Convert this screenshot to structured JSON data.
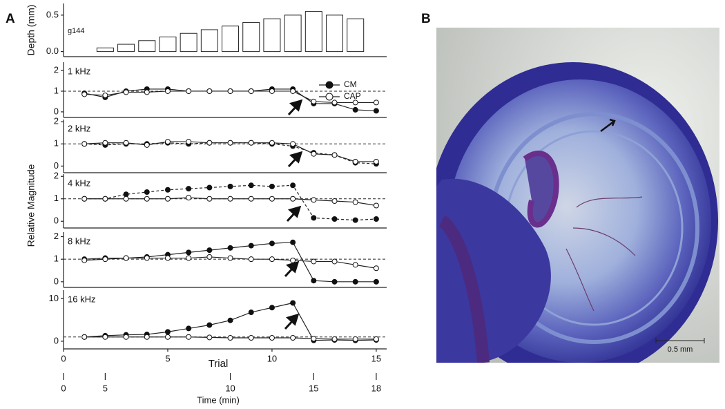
{
  "panel_labels": [
    "A",
    "B"
  ],
  "scale_bar": "0.5 mm",
  "chart_data": [
    {
      "type": "bar",
      "ylabel": "Depth (mm)",
      "annotation": "g144",
      "x": [
        2,
        3,
        4,
        5,
        6,
        7,
        8,
        9,
        10,
        11,
        12,
        13,
        14
      ],
      "values": [
        0.05,
        0.1,
        0.15,
        0.2,
        0.25,
        0.3,
        0.35,
        0.4,
        0.45,
        0.5,
        0.55,
        0.5,
        0.45
      ],
      "color": "#ffffff",
      "ylim": [
        -0.07,
        0.66
      ],
      "yticks": [
        {
          "value": 0,
          "label": "0.0"
        },
        0.5
      ]
    },
    {
      "type": "line",
      "label": "1 kHz",
      "legend": true,
      "reference": 1,
      "x": [
        1,
        2,
        3,
        4,
        5,
        6,
        7,
        8,
        9,
        10,
        11,
        12,
        13,
        14,
        15
      ],
      "series": [
        {
          "name": "CM",
          "filled": true,
          "dashed": false,
          "values": [
            0.9,
            0.7,
            1.0,
            1.1,
            1.1,
            1.0,
            1.0,
            1.0,
            1.0,
            1.1,
            1.1,
            0.4,
            0.4,
            0.1,
            0.05
          ]
        },
        {
          "name": "CAP",
          "filled": false,
          "dashed": false,
          "values": [
            0.85,
            0.8,
            0.95,
            0.95,
            1.0,
            1.0,
            1.0,
            1.0,
            1.0,
            1.0,
            1.0,
            0.5,
            0.45,
            0.45,
            0.45
          ]
        }
      ],
      "ylim": [
        -0.27,
        2.4
      ],
      "yticks": [
        0,
        1,
        2
      ]
    },
    {
      "type": "line",
      "label": "2 kHz",
      "reference": 1,
      "x": [
        1,
        2,
        3,
        4,
        5,
        6,
        7,
        8,
        9,
        10,
        11,
        12,
        13,
        14,
        15
      ],
      "series": [
        {
          "filled": true,
          "dashed": true,
          "values": [
            1.0,
            0.95,
            1.0,
            1.0,
            1.05,
            1.0,
            1.05,
            1.05,
            1.05,
            1.0,
            0.9,
            0.6,
            0.5,
            0.15,
            0.1
          ]
        },
        {
          "filled": false,
          "dashed": false,
          "values": [
            1.0,
            1.05,
            1.05,
            0.95,
            1.1,
            1.1,
            1.05,
            1.05,
            1.05,
            1.05,
            1.0,
            0.55,
            0.5,
            0.2,
            0.2
          ]
        }
      ],
      "ylim": [
        -0.3,
        2.1
      ],
      "yticks": [
        0,
        1,
        2
      ]
    },
    {
      "type": "line",
      "label": "4 kHz",
      "reference": 1,
      "ylabel": "Relative Magnitude",
      "x": [
        1,
        2,
        3,
        4,
        5,
        6,
        7,
        8,
        9,
        10,
        11,
        12,
        13,
        14,
        15
      ],
      "series": [
        {
          "filled": true,
          "dashed": true,
          "values": [
            1.0,
            1.0,
            1.2,
            1.3,
            1.4,
            1.45,
            1.5,
            1.55,
            1.6,
            1.55,
            1.6,
            0.15,
            0.1,
            0.05,
            0.1
          ]
        },
        {
          "filled": false,
          "dashed": false,
          "values": [
            1.0,
            1.0,
            1.0,
            1.0,
            1.0,
            1.05,
            1.0,
            1.0,
            1.0,
            1.0,
            1.0,
            0.95,
            0.9,
            0.85,
            0.7
          ]
        }
      ],
      "ylim": [
        -0.3,
        2.1
      ],
      "yticks": [
        0,
        1,
        2
      ]
    },
    {
      "type": "line",
      "label": "8 kHz",
      "reference": 1,
      "x": [
        1,
        2,
        3,
        4,
        5,
        6,
        7,
        8,
        9,
        10,
        11,
        12,
        13,
        14,
        15
      ],
      "series": [
        {
          "filled": true,
          "dashed": false,
          "values": [
            1.0,
            1.05,
            1.05,
            1.1,
            1.2,
            1.3,
            1.4,
            1.5,
            1.6,
            1.7,
            1.75,
            0.05,
            0.0,
            0.0,
            0.0
          ]
        },
        {
          "filled": false,
          "dashed": false,
          "values": [
            0.95,
            1.0,
            1.05,
            1.05,
            1.05,
            1.05,
            1.1,
            1.05,
            1.0,
            1.0,
            0.95,
            0.9,
            0.9,
            0.75,
            0.6
          ]
        }
      ],
      "ylim": [
        -0.25,
        2.2
      ],
      "yticks": [
        0,
        1,
        2
      ]
    },
    {
      "type": "line",
      "label": "16 kHz",
      "reference": 1,
      "x": [
        1,
        2,
        3,
        4,
        5,
        6,
        7,
        8,
        9,
        10,
        11,
        12,
        13,
        14,
        15
      ],
      "series": [
        {
          "filled": true,
          "dashed": false,
          "values": [
            1.0,
            1.3,
            1.5,
            1.6,
            2.2,
            3.0,
            3.8,
            4.9,
            6.8,
            7.9,
            9.0,
            0.2,
            0.3,
            0.2,
            0.3
          ]
        },
        {
          "filled": false,
          "dashed": false,
          "values": [
            1.0,
            1.0,
            1.0,
            1.0,
            1.0,
            1.0,
            0.9,
            0.8,
            0.8,
            0.8,
            0.8,
            0.6,
            0.5,
            0.5,
            0.5
          ]
        }
      ],
      "ylim": [
        -1.8,
        12
      ],
      "yticks": [
        0,
        10
      ],
      "xlim": [
        0,
        15.5
      ],
      "xticks": [
        0,
        5,
        10,
        15
      ],
      "xlabel": "Trial",
      "x2label": "Time (min)",
      "x2ticks": [
        {
          "value": 0,
          "trial": 0
        },
        {
          "value": 5,
          "trial": 2
        },
        {
          "value": 10,
          "trial": 8
        },
        {
          "value": 15,
          "trial": 12
        },
        {
          "value": 18,
          "trial": 15
        }
      ]
    }
  ]
}
